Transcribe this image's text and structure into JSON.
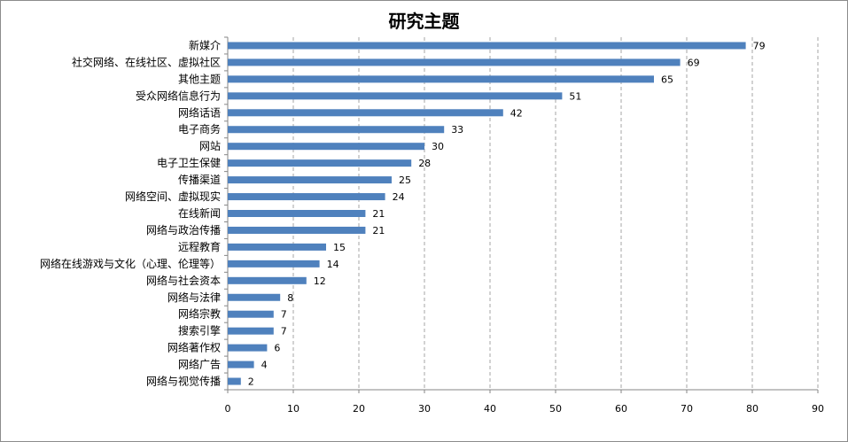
{
  "chart_data": {
    "type": "bar",
    "orientation": "horizontal",
    "title": "研究主题",
    "xlabel": "",
    "ylabel": "",
    "xlim": [
      0,
      90
    ],
    "x_ticks": [
      0,
      10,
      20,
      30,
      40,
      50,
      60,
      70,
      80,
      90
    ],
    "grid": "vertical dashed",
    "legend": "none",
    "bar_color": "#4f81bd",
    "categories": [
      "新媒介",
      "社交网络、在线社区、虚拟社区",
      "其他主题",
      "受众网络信息行为",
      "网络话语",
      "电子商务",
      "网站",
      "电子卫生保健",
      "传播渠道",
      "网络空间、虚拟现实",
      "在线新闻",
      "网络与政治传播",
      "远程教育",
      "网络在线游戏与文化（心理、伦理等）",
      "网络与社会资本",
      "网络与法律",
      "网络宗教",
      "搜索引擎",
      "网络著作权",
      "网络广告",
      "网络与视觉传播"
    ],
    "values": [
      79,
      69,
      65,
      51,
      42,
      33,
      30,
      28,
      25,
      24,
      21,
      21,
      15,
      14,
      12,
      8,
      7,
      7,
      6,
      4,
      2
    ]
  }
}
